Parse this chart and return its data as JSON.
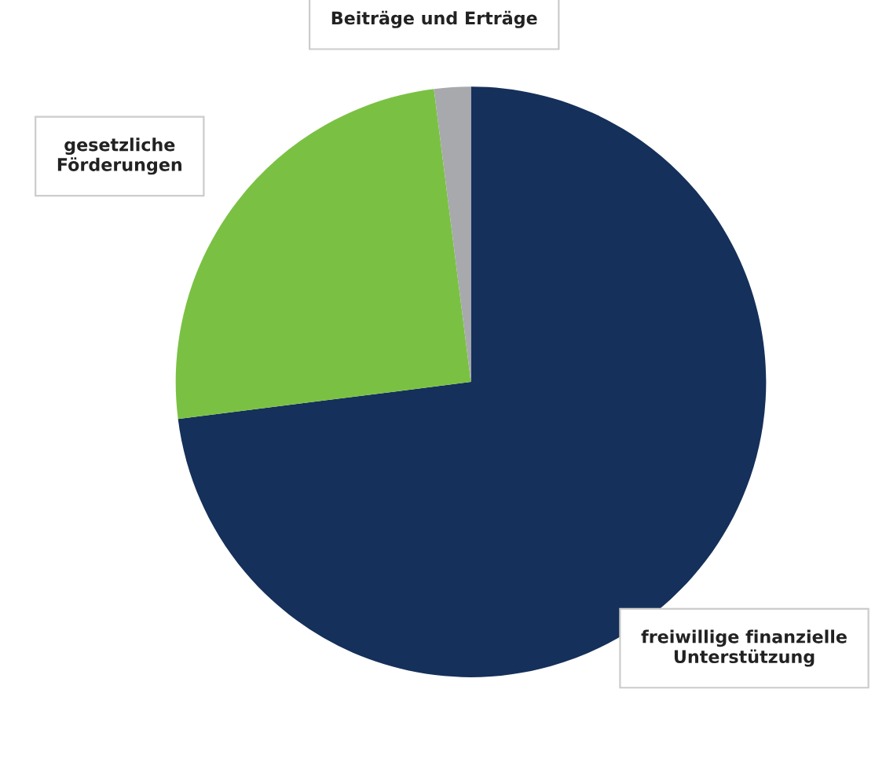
{
  "chart_data": {
    "type": "pie",
    "categories": [
      "freiwillige finanzielle\nUnterstützung",
      "gesetzliche\nFörderungen",
      "Beiträge und Erträge"
    ],
    "values": [
      73,
      25,
      2
    ],
    "colors": [
      "#15305a",
      "#7ac143",
      "#a7a9ac"
    ]
  }
}
